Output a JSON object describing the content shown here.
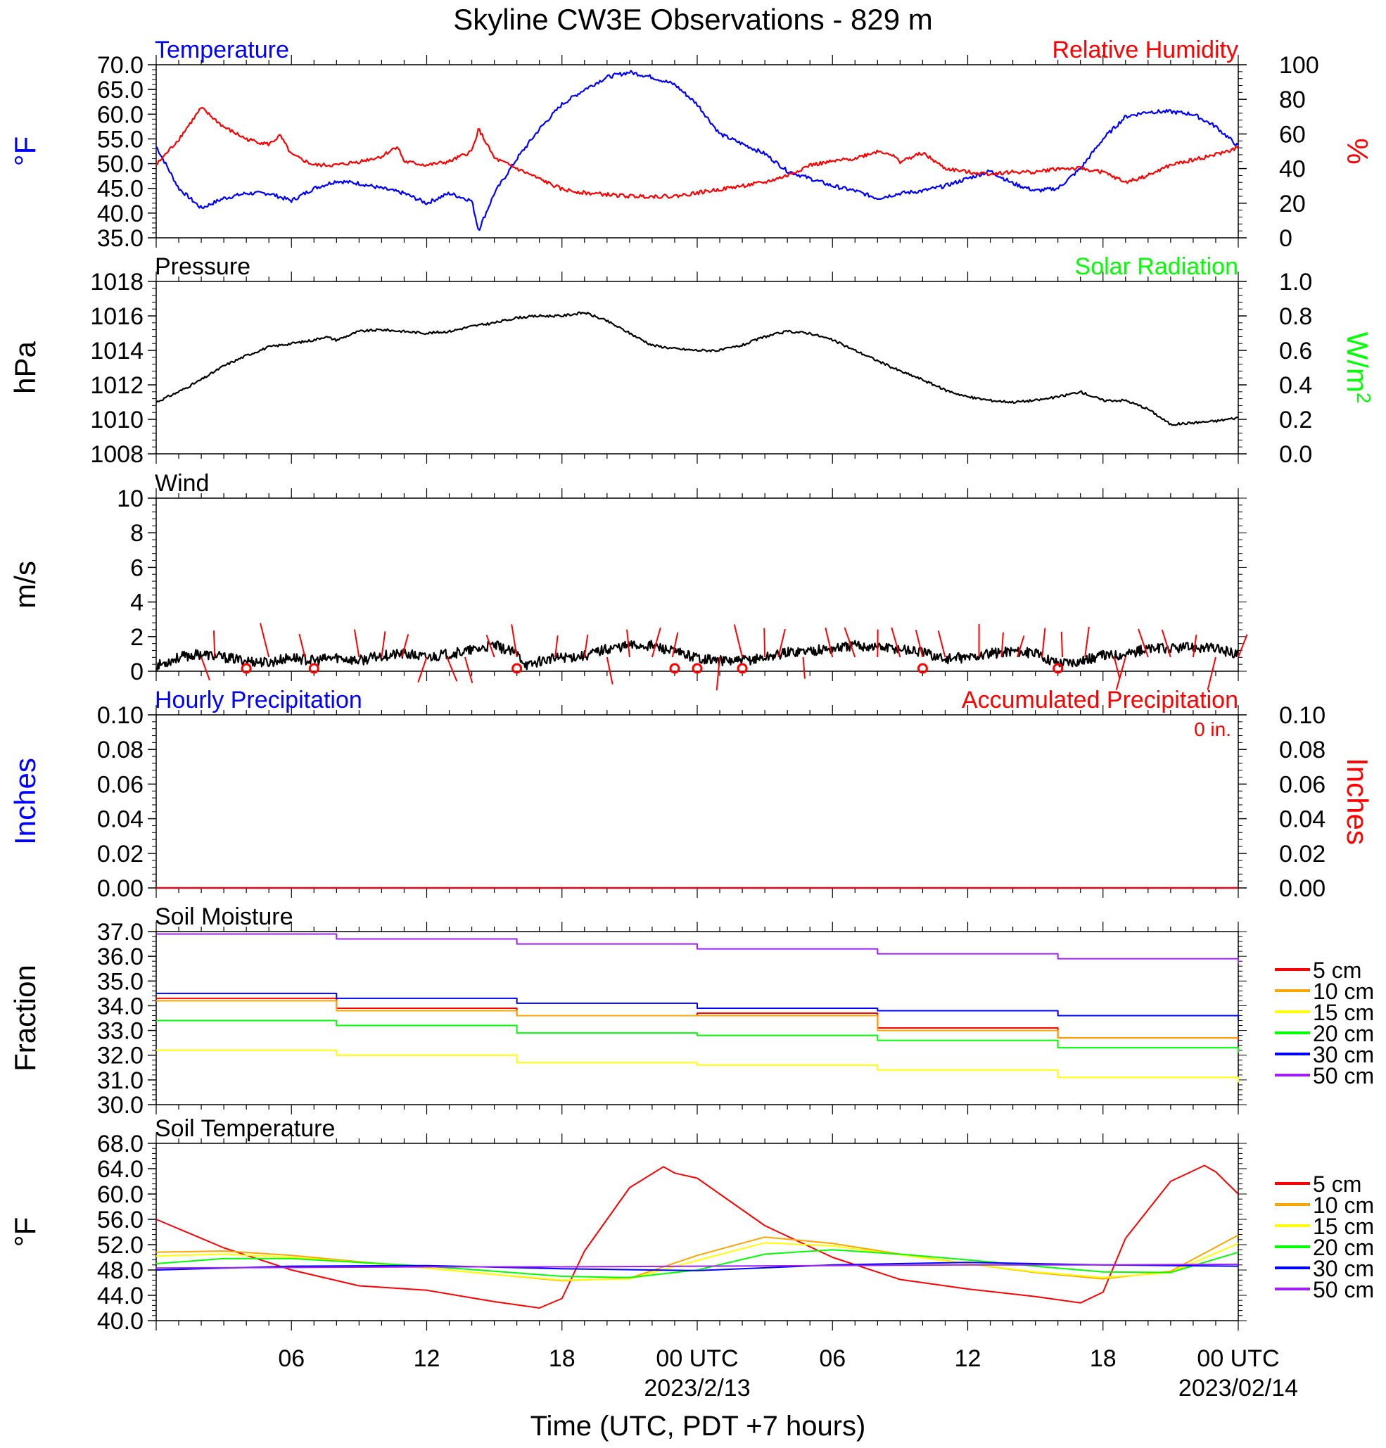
{
  "title": "Skyline CW3E Observations - 829 m",
  "xlabel": "Time (UTC, PDT +7 hours)",
  "x_ticks": [
    {
      "hour": 6,
      "label": "06"
    },
    {
      "hour": 12,
      "label": "12"
    },
    {
      "hour": 18,
      "label": "18"
    },
    {
      "hour": 24,
      "label": "00 UTC",
      "date": "2023/2/13"
    },
    {
      "hour": 30,
      "label": "06"
    },
    {
      "hour": 36,
      "label": "12"
    },
    {
      "hour": 42,
      "label": "18"
    },
    {
      "hour": 48,
      "label": "00 UTC",
      "date": "2023/02/14"
    }
  ],
  "colors": {
    "temperature": "#0000ff",
    "humidity": "#ff0000",
    "solar": "#00ff00",
    "black": "#000000",
    "soil": {
      "5 cm": "#ff0000",
      "10 cm": "#ffa500",
      "15 cm": "#ffff00",
      "20 cm": "#00ff00",
      "30 cm": "#0000ff",
      "50 cm": "#a020f0"
    }
  },
  "chart_data": [
    {
      "type": "line",
      "panel": "temperature-humidity",
      "left_title": "Temperature",
      "right_title": "Relative Humidity",
      "left_units": "°F",
      "right_units": "%",
      "left_ylim": [
        35,
        70
      ],
      "left_ticks": [
        "35.0",
        "40.0",
        "45.0",
        "50.0",
        "55.0",
        "60.0",
        "65.0",
        "70.0"
      ],
      "right_ylim": [
        0,
        100
      ],
      "right_ticks": [
        "0",
        "20",
        "40",
        "60",
        "80",
        "100"
      ],
      "series": [
        {
          "name": "Temperature",
          "axis": "left",
          "x": [
            0,
            1,
            2,
            3,
            4,
            5,
            6,
            7,
            8,
            9,
            10,
            11,
            12,
            13,
            14,
            14.3,
            15,
            16,
            17,
            18,
            19,
            20,
            21,
            22,
            23,
            24,
            25,
            26,
            27,
            28,
            29,
            30,
            31,
            32,
            33,
            34,
            35,
            36,
            37,
            38,
            39,
            40,
            41,
            42,
            43,
            44,
            45,
            46,
            47,
            48
          ],
          "values": [
            53.5,
            45,
            41,
            43,
            44,
            44,
            42.5,
            45,
            46.5,
            46,
            45,
            44,
            42,
            44,
            42.5,
            36.5,
            44,
            51,
            57,
            62,
            65,
            67.5,
            68.5,
            67.5,
            66,
            62,
            56,
            54,
            52,
            48.5,
            47,
            45.5,
            44.5,
            43,
            44,
            44.5,
            45.5,
            47,
            48.5,
            46,
            44.5,
            45,
            49,
            55,
            59.5,
            60.5,
            60.5,
            60,
            57.5,
            53.5
          ]
        },
        {
          "name": "Relative Humidity",
          "axis": "right",
          "x": [
            0,
            1,
            2,
            3,
            4,
            5,
            5.5,
            6,
            7,
            8,
            9,
            10,
            10.7,
            11,
            12,
            13,
            14,
            14.3,
            15,
            16,
            17,
            18,
            19,
            20,
            21,
            22,
            23,
            24,
            25,
            26,
            27,
            28,
            29,
            30,
            31,
            32,
            32.5,
            33,
            34,
            35,
            36,
            37,
            38,
            39,
            40,
            41,
            42,
            43,
            44,
            45,
            46,
            47,
            48
          ],
          "values": [
            42,
            57,
            75,
            64,
            57,
            54,
            59,
            48,
            42,
            42,
            44,
            47,
            53,
            44,
            42,
            44,
            50,
            63,
            46,
            40,
            34,
            28,
            26,
            25,
            24,
            24,
            24,
            26,
            28,
            30,
            32,
            36,
            42,
            44,
            46,
            50,
            49,
            44,
            49,
            40,
            38,
            37,
            38,
            38,
            40,
            40,
            38,
            32,
            36,
            42,
            45,
            48,
            52
          ]
        }
      ]
    },
    {
      "type": "line",
      "panel": "pressure",
      "left_title": "Pressure",
      "right_title": "Solar Radiation",
      "left_units": "hPa",
      "right_units": "W/m",
      "right_units_sup": "2",
      "left_ylim": [
        1008,
        1018
      ],
      "left_ticks": [
        "1008",
        "1010",
        "1012",
        "1014",
        "1016",
        "1018"
      ],
      "right_ylim": [
        0,
        1
      ],
      "right_ticks": [
        "0.0",
        "0.2",
        "0.4",
        "0.6",
        "0.8",
        "1.0"
      ],
      "series": [
        {
          "name": "Pressure",
          "axis": "left",
          "x": [
            0,
            1,
            2,
            3,
            4,
            5,
            6,
            7,
            7.5,
            8,
            9,
            10,
            11,
            12,
            13,
            14,
            15,
            16,
            17,
            18,
            19,
            20,
            21,
            22,
            23,
            24,
            25,
            26,
            27,
            28,
            29,
            30,
            31,
            32,
            33,
            34,
            35,
            36,
            37,
            38,
            39,
            40,
            41,
            42,
            43,
            44,
            45,
            46,
            47,
            48
          ],
          "values": [
            1011,
            1011.6,
            1012.3,
            1013.1,
            1013.7,
            1014.2,
            1014.4,
            1014.6,
            1014.8,
            1014.6,
            1015.1,
            1015.2,
            1015.1,
            1015,
            1015.1,
            1015.4,
            1015.6,
            1015.9,
            1016,
            1016,
            1016.2,
            1015.7,
            1015,
            1014.3,
            1014.1,
            1014,
            1014,
            1014.3,
            1014.8,
            1015.1,
            1015,
            1014.6,
            1014,
            1013.4,
            1012.8,
            1012.3,
            1011.7,
            1011.3,
            1011.1,
            1011,
            1011.1,
            1011.3,
            1011.6,
            1011.1,
            1011.1,
            1010.6,
            1009.7,
            1009.8,
            1009.9,
            1010.1
          ]
        }
      ]
    },
    {
      "type": "line",
      "panel": "wind",
      "left_title": "Wind",
      "left_units": "m/s",
      "left_ylim": [
        0,
        10
      ],
      "left_ticks": [
        "0",
        "2",
        "4",
        "6",
        "8",
        "10"
      ],
      "series": [
        {
          "name": "Wind",
          "axis": "left",
          "x": [
            0,
            1,
            2,
            3,
            4,
            5,
            6,
            7,
            8,
            9,
            10,
            11,
            12,
            13,
            14,
            15,
            16,
            16.5,
            17,
            18,
            19,
            20,
            21,
            22,
            23,
            24,
            25,
            26,
            27,
            28,
            29,
            30,
            31,
            32,
            33,
            34,
            35,
            36,
            37,
            38,
            39,
            40,
            41,
            42,
            43,
            44,
            45,
            46,
            47,
            48
          ],
          "values": [
            0.3,
            0.8,
            1.0,
            0.8,
            0.6,
            0.5,
            0.8,
            0.6,
            0.8,
            0.6,
            0.9,
            1.0,
            0.8,
            1.0,
            1.2,
            1.5,
            1.0,
            0.3,
            0.6,
            0.8,
            0.9,
            1.3,
            1.5,
            1.5,
            1.1,
            0.8,
            0.6,
            0.6,
            0.8,
            1.1,
            1.2,
            1.3,
            1.5,
            1.4,
            1.3,
            1.1,
            0.7,
            0.8,
            1.0,
            1.2,
            1.0,
            0.5,
            0.6,
            0.9,
            1.0,
            1.3,
            1.3,
            1.4,
            1.3,
            1.0
          ]
        }
      ],
      "barbs": {
        "hours": [
          2,
          2.6,
          5,
          6.6,
          9,
          10,
          10.9,
          12,
          12.9,
          13.7,
          15,
          16,
          17.7,
          19,
          20,
          21,
          22,
          22.9,
          25,
          26,
          27,
          27.6,
          28.7,
          30,
          31,
          32,
          33,
          34,
          35,
          36.5,
          37.5,
          38.2,
          39.3,
          40.2,
          41.2,
          42.5,
          43,
          44,
          45,
          46,
          47,
          48
        ],
        "calm_hours": [
          4,
          7,
          16,
          23,
          24,
          26,
          34,
          40
        ]
      }
    },
    {
      "type": "line",
      "panel": "precipitation",
      "left_title": "Hourly Precipitation",
      "right_title": "Accumulated Precipitation",
      "right_note": "0 in.",
      "left_units": "Inches",
      "right_units": "Inches",
      "left_ylim": [
        0,
        0.1
      ],
      "left_ticks": [
        "0.00",
        "0.02",
        "0.04",
        "0.06",
        "0.08",
        "0.10"
      ],
      "right_ylim": [
        0,
        0.1
      ],
      "right_ticks": [
        "0.00",
        "0.02",
        "0.04",
        "0.06",
        "0.08",
        "0.10"
      ],
      "series": [
        {
          "name": "Hourly Precipitation",
          "axis": "left",
          "x": [
            0,
            48
          ],
          "values": [
            0,
            0
          ]
        },
        {
          "name": "Accumulated Precipitation",
          "axis": "right",
          "x": [
            0,
            48
          ],
          "values": [
            0,
            0
          ]
        }
      ]
    },
    {
      "type": "line",
      "panel": "soil-moisture",
      "left_title": "Soil Moisture",
      "left_units": "Fraction",
      "left_ylim": [
        30,
        37
      ],
      "left_ticks": [
        "30.0",
        "31.0",
        "32.0",
        "33.0",
        "34.0",
        "35.0",
        "36.0",
        "37.0"
      ],
      "series": [
        {
          "name": "5 cm",
          "x": [
            0,
            8,
            16,
            24,
            32,
            40,
            48
          ],
          "values": [
            34.3,
            33.9,
            33.6,
            33.7,
            33.1,
            32.7,
            32.6
          ]
        },
        {
          "name": "10 cm",
          "x": [
            0,
            8,
            16,
            24,
            32,
            40,
            48
          ],
          "values": [
            34.2,
            33.8,
            33.6,
            33.6,
            33.0,
            32.7,
            32.7
          ]
        },
        {
          "name": "15 cm",
          "x": [
            0,
            8,
            16,
            24,
            32,
            40,
            48
          ],
          "values": [
            32.2,
            32.0,
            31.7,
            31.6,
            31.4,
            31.1,
            30.9
          ]
        },
        {
          "name": "20 cm",
          "x": [
            0,
            8,
            16,
            24,
            32,
            40,
            48
          ],
          "values": [
            33.4,
            33.2,
            32.9,
            32.8,
            32.6,
            32.3,
            32.1
          ]
        },
        {
          "name": "30 cm",
          "x": [
            0,
            8,
            16,
            24,
            32,
            40,
            48
          ],
          "values": [
            34.5,
            34.3,
            34.1,
            33.9,
            33.8,
            33.6,
            33.4
          ]
        },
        {
          "name": "50 cm",
          "x": [
            0,
            8,
            16,
            24,
            32,
            40,
            48
          ],
          "values": [
            36.9,
            36.7,
            36.5,
            36.3,
            36.1,
            35.9,
            35.7
          ]
        }
      ]
    },
    {
      "type": "line",
      "panel": "soil-temperature",
      "left_title": "Soil Temperature",
      "left_units": "°F",
      "left_ylim": [
        40,
        68
      ],
      "left_ticks": [
        "40.0",
        "44.0",
        "48.0",
        "52.0",
        "56.0",
        "60.0",
        "64.0",
        "68.0"
      ],
      "series": [
        {
          "name": "5 cm",
          "x": [
            0,
            3,
            6,
            9,
            12,
            15,
            17,
            18,
            19,
            21,
            22.5,
            23,
            24,
            25,
            27,
            30,
            33,
            36,
            39,
            41,
            42,
            43,
            45,
            46.5,
            47,
            48
          ],
          "values": [
            56,
            51.5,
            48,
            45.5,
            44.8,
            43,
            42,
            43.5,
            51,
            61,
            64.3,
            63.3,
            62.5,
            60,
            55,
            50,
            46.5,
            45,
            43.8,
            42.8,
            44.5,
            53,
            62,
            64.5,
            63.5,
            60
          ]
        },
        {
          "name": "10 cm",
          "x": [
            0,
            3,
            6,
            9,
            12,
            15,
            18,
            21,
            24,
            27,
            30,
            33,
            36,
            39,
            42,
            45,
            48
          ],
          "values": [
            50.8,
            51,
            50.3,
            49.3,
            48.3,
            47.3,
            46.3,
            46.7,
            50.3,
            53.2,
            52.2,
            50.5,
            49,
            47.6,
            46.6,
            47.8,
            53.5
          ]
        },
        {
          "name": "15 cm",
          "x": [
            0,
            3,
            6,
            9,
            12,
            15,
            18,
            21,
            24,
            27,
            30,
            33,
            36,
            39,
            42,
            45,
            48
          ],
          "values": [
            50.2,
            50.5,
            50,
            49.2,
            48.3,
            47.3,
            46.4,
            46.6,
            49.5,
            52.3,
            51.8,
            50.4,
            49,
            47.7,
            46.8,
            47.6,
            52.2
          ]
        },
        {
          "name": "20 cm",
          "x": [
            0,
            3,
            6,
            9,
            12,
            15,
            18,
            21,
            24,
            27,
            30,
            33,
            36,
            39,
            42,
            45,
            48
          ],
          "values": [
            49,
            49.8,
            49.8,
            49.2,
            48.6,
            47.8,
            47,
            46.8,
            48,
            50.5,
            51.2,
            50.5,
            49.6,
            48.6,
            47.7,
            47.6,
            50.8
          ]
        },
        {
          "name": "30 cm",
          "x": [
            0,
            6,
            12,
            18,
            24,
            30,
            36,
            42,
            48
          ],
          "values": [
            48,
            48.6,
            48.7,
            48.2,
            47.9,
            48.8,
            49.2,
            48.8,
            48.6
          ]
        },
        {
          "name": "50 cm",
          "x": [
            0,
            6,
            12,
            18,
            24,
            30,
            36,
            42,
            48
          ],
          "values": [
            48.3,
            48.4,
            48.5,
            48.5,
            48.6,
            48.7,
            48.8,
            48.8,
            48.9
          ]
        }
      ]
    }
  ]
}
